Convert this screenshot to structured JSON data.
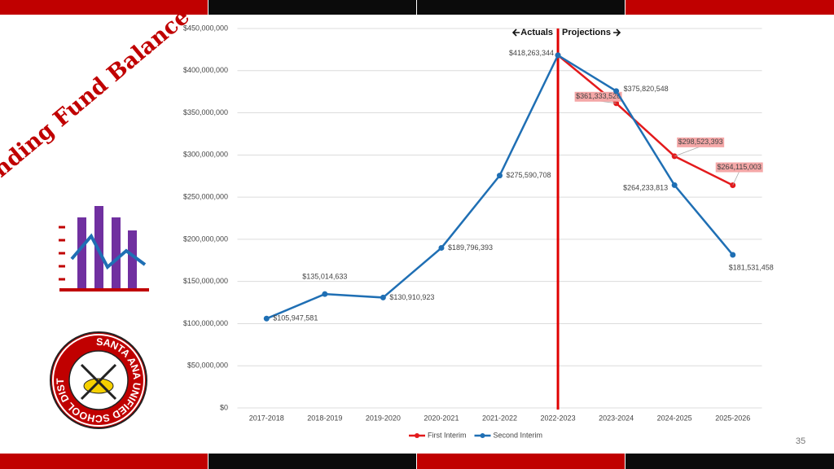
{
  "slide_title": "Ending Fund Balance",
  "page_number": "35",
  "logo_text": "SANTA ANA UNIFIED SCHOOL DISTRICT",
  "chart_data": {
    "type": "line",
    "annotations": [
      "Actuals",
      "Projections"
    ],
    "categories": [
      "2017-2018",
      "2018-2019",
      "2019-2020",
      "2020-2021",
      "2021-2022",
      "2022-2023",
      "2023-2024",
      "2024-2025",
      "2025-2026"
    ],
    "series": [
      {
        "name": "First Interim",
        "color": "#e31a1c",
        "values": [
          null,
          null,
          null,
          null,
          null,
          418263344,
          361333526,
          298523393,
          264115003
        ],
        "value_labels": [
          null,
          null,
          null,
          null,
          null,
          null,
          "$361,333,526",
          "$298,523,393",
          "$264,115,003"
        ]
      },
      {
        "name": "Second Interim",
        "color": "#1f6fb4",
        "values": [
          105947581,
          135014633,
          130910923,
          189796393,
          275590708,
          418263344,
          375820548,
          264233813,
          181531458
        ],
        "value_labels": [
          "$105,947,581",
          "$135,014,633",
          "$130,910,923",
          "$189,796,393",
          "$275,590,708",
          "$418,263,344",
          "$375,820,548",
          "$264,233,813",
          "$181,531,458"
        ]
      }
    ],
    "ylim": [
      0,
      450000000
    ],
    "yticks": [
      {
        "value": 0,
        "label": "$0"
      },
      {
        "value": 50000000,
        "label": "$50,000,000"
      },
      {
        "value": 100000000,
        "label": "$100,000,000"
      },
      {
        "value": 150000000,
        "label": "$150,000,000"
      },
      {
        "value": 200000000,
        "label": "$200,000,000"
      },
      {
        "value": 250000000,
        "label": "$250,000,000"
      },
      {
        "value": 300000000,
        "label": "$300,000,000"
      },
      {
        "value": 350000000,
        "label": "$350,000,000"
      },
      {
        "value": 400000000,
        "label": "$400,000,000"
      },
      {
        "value": 450000000,
        "label": "$450,000,000"
      }
    ],
    "grid": true,
    "legend": "bottom"
  }
}
